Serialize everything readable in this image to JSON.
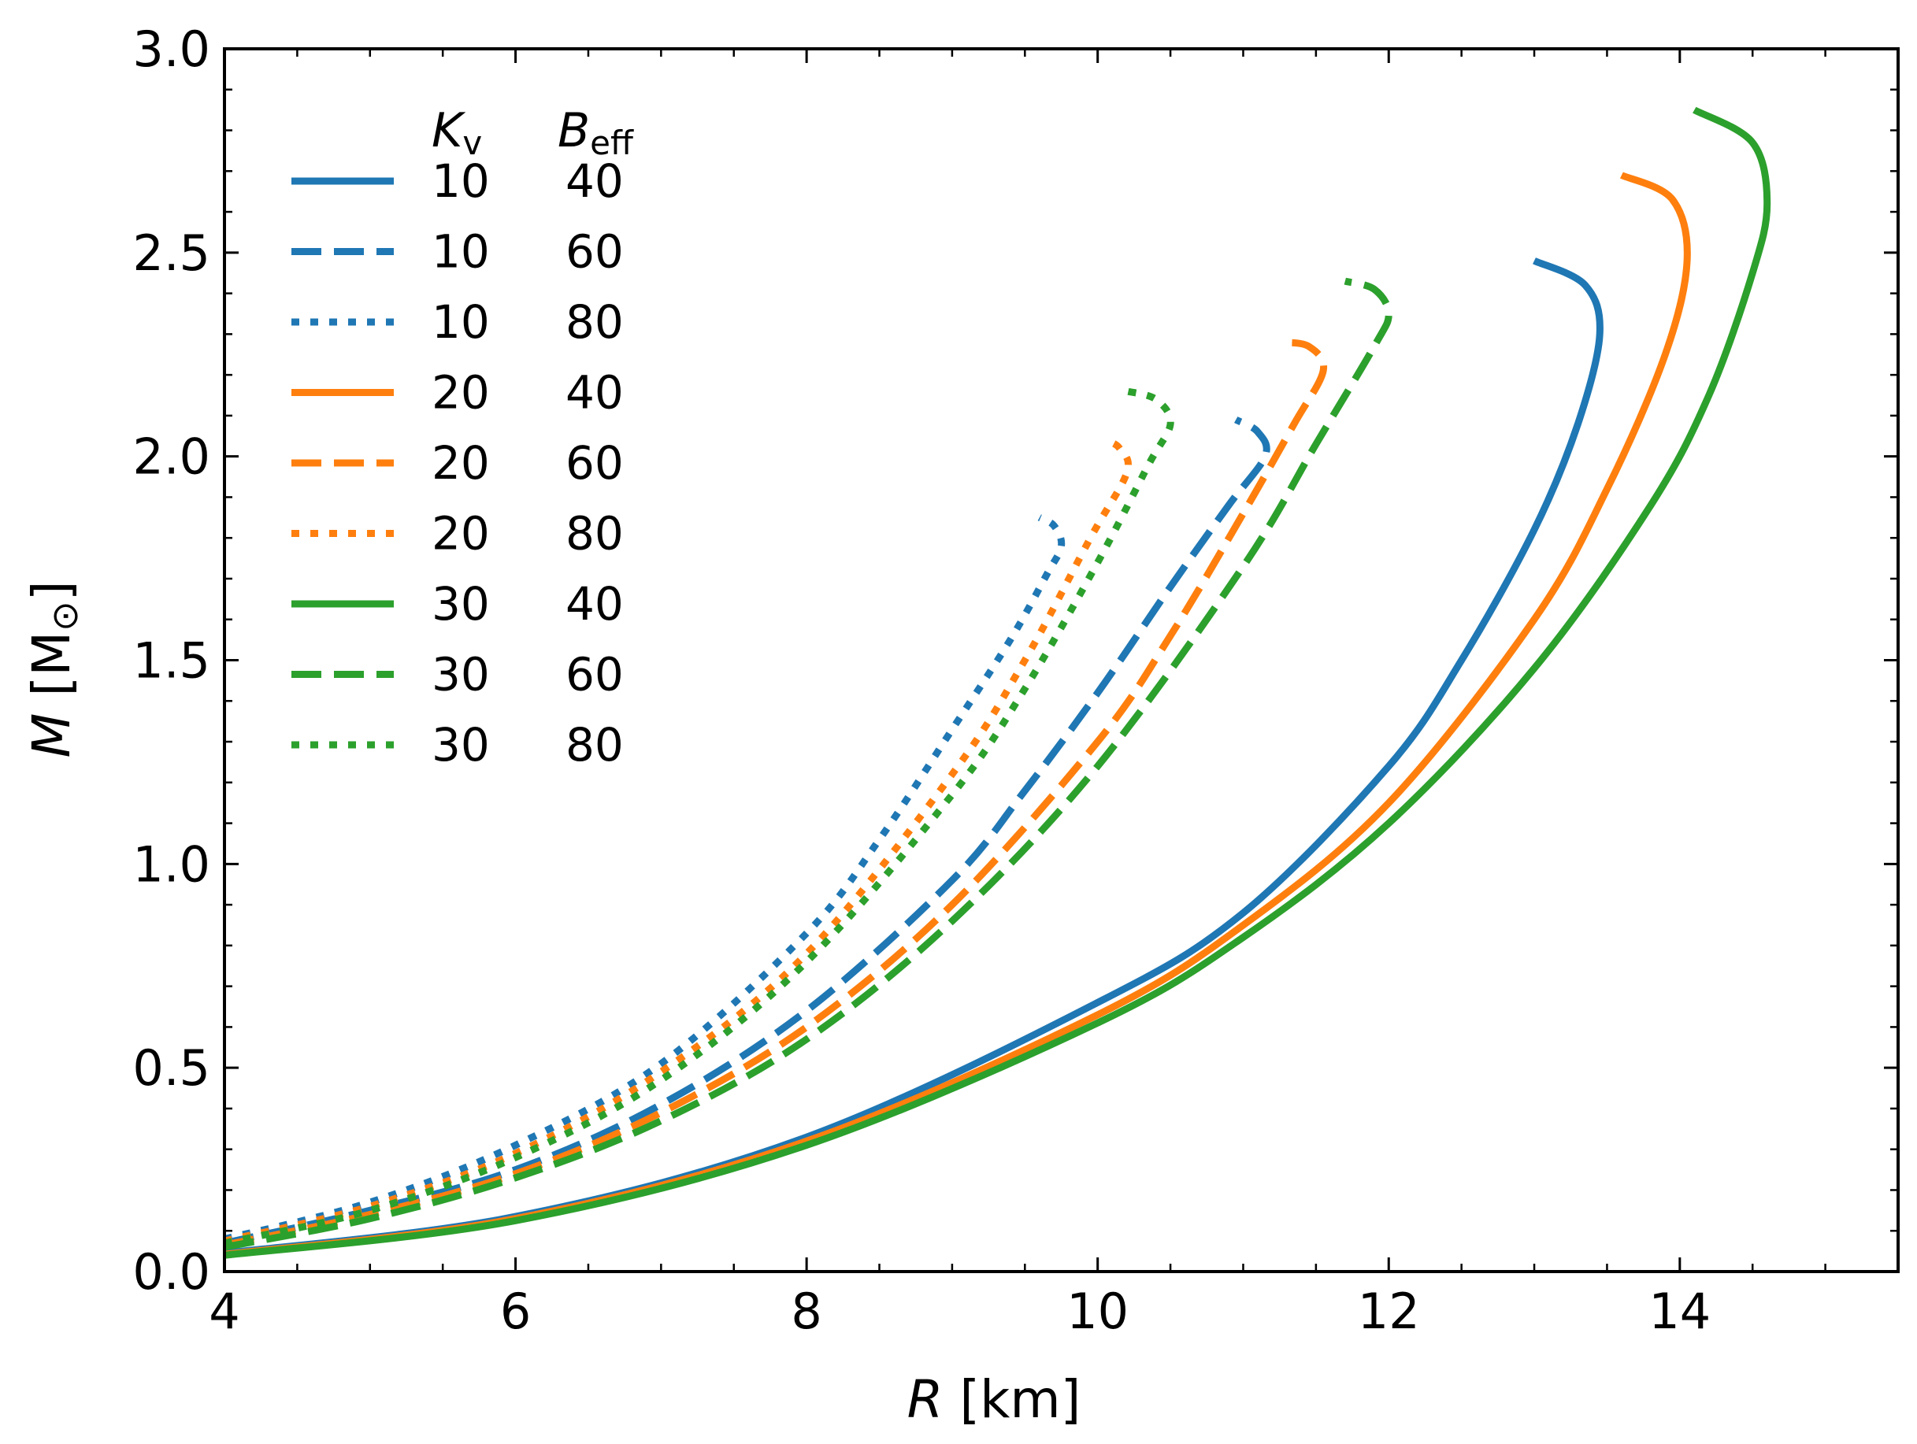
{
  "chart_data": {
    "type": "line",
    "xlabel_var": "R",
    "xlabel_unit": " [km]",
    "ylabel_var": "M",
    "ylabel_unit_open": " [M",
    "ylabel_unit_sub": "⊙",
    "ylabel_unit_close": "]",
    "xlim": [
      4,
      15.5
    ],
    "ylim": [
      0.0,
      3.0
    ],
    "x_ticks": [
      4,
      6,
      8,
      10,
      12,
      14
    ],
    "x_tick_labels": [
      "4",
      "6",
      "8",
      "10",
      "12",
      "14"
    ],
    "y_ticks": [
      0.0,
      0.5,
      1.0,
      1.5,
      2.0,
      2.5,
      3.0
    ],
    "y_tick_labels": [
      "0.0",
      "0.5",
      "1.0",
      "1.5",
      "2.0",
      "2.5",
      "3.0"
    ],
    "legend": {
      "placement": "top-left",
      "col1_var": "K",
      "col1_sub": "v",
      "col2_var": "B",
      "col2_sub": "eff"
    },
    "colors": {
      "blue": "#1f77b4",
      "orange": "#ff7f0e",
      "green": "#2ca02c"
    },
    "series": [
      {
        "kv": "10",
        "beff": "40",
        "color": "blue",
        "style": "solid",
        "points": [
          [
            4.0,
            0.045
          ],
          [
            6.0,
            0.135
          ],
          [
            8.0,
            0.33
          ],
          [
            10.0,
            0.66
          ],
          [
            11.0,
            0.88
          ],
          [
            12.0,
            1.24
          ],
          [
            12.5,
            1.5
          ],
          [
            13.0,
            1.82
          ],
          [
            13.3,
            2.08
          ],
          [
            13.45,
            2.3
          ],
          [
            13.35,
            2.42
          ],
          [
            13.0,
            2.48
          ]
        ]
      },
      {
        "kv": "10",
        "beff": "60",
        "color": "blue",
        "style": "dashed",
        "points": [
          [
            4.0,
            0.07
          ],
          [
            5.0,
            0.15
          ],
          [
            6.0,
            0.25
          ],
          [
            7.0,
            0.41
          ],
          [
            8.0,
            0.64
          ],
          [
            9.0,
            0.96
          ],
          [
            9.5,
            1.18
          ],
          [
            10.0,
            1.42
          ],
          [
            10.5,
            1.68
          ],
          [
            10.9,
            1.88
          ],
          [
            11.15,
            2.0
          ],
          [
            11.1,
            2.06
          ],
          [
            10.95,
            2.09
          ]
        ]
      },
      {
        "kv": "10",
        "beff": "80",
        "color": "blue",
        "style": "dotted",
        "points": [
          [
            4.0,
            0.08
          ],
          [
            5.0,
            0.17
          ],
          [
            6.0,
            0.31
          ],
          [
            7.0,
            0.51
          ],
          [
            8.0,
            0.83
          ],
          [
            8.5,
            1.06
          ],
          [
            9.0,
            1.33
          ],
          [
            9.4,
            1.55
          ],
          [
            9.65,
            1.71
          ],
          [
            9.75,
            1.78
          ],
          [
            9.7,
            1.83
          ],
          [
            9.6,
            1.85
          ]
        ]
      },
      {
        "kv": "20",
        "beff": "40",
        "color": "orange",
        "style": "solid",
        "points": [
          [
            4.0,
            0.042
          ],
          [
            6.0,
            0.13
          ],
          [
            8.0,
            0.32
          ],
          [
            10.0,
            0.63
          ],
          [
            11.0,
            0.85
          ],
          [
            12.0,
            1.15
          ],
          [
            13.0,
            1.6
          ],
          [
            13.5,
            1.92
          ],
          [
            13.9,
            2.25
          ],
          [
            14.05,
            2.48
          ],
          [
            13.95,
            2.63
          ],
          [
            13.6,
            2.69
          ]
        ]
      },
      {
        "kv": "20",
        "beff": "60",
        "color": "orange",
        "style": "dashed",
        "points": [
          [
            4.0,
            0.065
          ],
          [
            5.0,
            0.14
          ],
          [
            6.0,
            0.24
          ],
          [
            7.0,
            0.39
          ],
          [
            8.0,
            0.6
          ],
          [
            9.0,
            0.9
          ],
          [
            10.0,
            1.3
          ],
          [
            10.5,
            1.56
          ],
          [
            11.0,
            1.86
          ],
          [
            11.35,
            2.08
          ],
          [
            11.55,
            2.21
          ],
          [
            11.45,
            2.27
          ],
          [
            11.25,
            2.28
          ]
        ]
      },
      {
        "kv": "20",
        "beff": "80",
        "color": "orange",
        "style": "dotted",
        "points": [
          [
            4.0,
            0.075
          ],
          [
            5.0,
            0.16
          ],
          [
            6.0,
            0.29
          ],
          [
            7.0,
            0.49
          ],
          [
            8.0,
            0.78
          ],
          [
            9.0,
            1.22
          ],
          [
            9.5,
            1.5
          ],
          [
            9.95,
            1.8
          ],
          [
            10.2,
            1.96
          ],
          [
            10.15,
            2.02
          ],
          [
            10.05,
            2.04
          ]
        ]
      },
      {
        "kv": "30",
        "beff": "40",
        "color": "green",
        "style": "solid",
        "points": [
          [
            4.0,
            0.04
          ],
          [
            6.0,
            0.125
          ],
          [
            8.0,
            0.31
          ],
          [
            10.0,
            0.61
          ],
          [
            11.0,
            0.82
          ],
          [
            12.0,
            1.1
          ],
          [
            13.0,
            1.48
          ],
          [
            13.8,
            1.88
          ],
          [
            14.2,
            2.15
          ],
          [
            14.5,
            2.45
          ],
          [
            14.6,
            2.62
          ],
          [
            14.5,
            2.77
          ],
          [
            14.1,
            2.85
          ]
        ]
      },
      {
        "kv": "30",
        "beff": "60",
        "color": "green",
        "style": "dashed",
        "points": [
          [
            4.0,
            0.06
          ],
          [
            5.0,
            0.13
          ],
          [
            6.0,
            0.23
          ],
          [
            7.0,
            0.37
          ],
          [
            8.0,
            0.57
          ],
          [
            9.0,
            0.86
          ],
          [
            10.0,
            1.24
          ],
          [
            11.0,
            1.73
          ],
          [
            11.5,
            2.03
          ],
          [
            11.9,
            2.27
          ],
          [
            12.0,
            2.35
          ],
          [
            11.9,
            2.41
          ],
          [
            11.7,
            2.43
          ]
        ]
      },
      {
        "kv": "30",
        "beff": "80",
        "color": "green",
        "style": "dotted",
        "points": [
          [
            4.0,
            0.07
          ],
          [
            5.0,
            0.15
          ],
          [
            6.0,
            0.28
          ],
          [
            7.0,
            0.47
          ],
          [
            8.0,
            0.76
          ],
          [
            9.0,
            1.17
          ],
          [
            9.5,
            1.43
          ],
          [
            10.0,
            1.74
          ],
          [
            10.35,
            1.98
          ],
          [
            10.5,
            2.08
          ],
          [
            10.4,
            2.14
          ],
          [
            10.2,
            2.16
          ]
        ]
      }
    ]
  }
}
